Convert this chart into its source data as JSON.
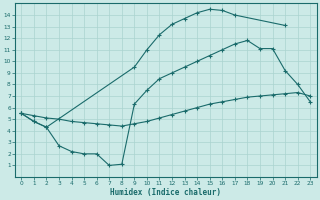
{
  "xlabel": "Humidex (Indice chaleur)",
  "bg_color": "#cceae7",
  "line_color": "#1a6b6b",
  "grid_color": "#aad4d0",
  "xlim": [
    -0.5,
    23.5
  ],
  "ylim": [
    0,
    15
  ],
  "xticks": [
    0,
    1,
    2,
    3,
    4,
    5,
    6,
    7,
    8,
    9,
    10,
    11,
    12,
    13,
    14,
    15,
    16,
    17,
    18,
    19,
    20,
    21,
    22,
    23
  ],
  "yticks": [
    1,
    2,
    3,
    4,
    5,
    6,
    7,
    8,
    9,
    10,
    11,
    12,
    13,
    14
  ],
  "curve1_x": [
    0,
    1,
    2,
    9,
    10,
    11,
    12,
    13,
    14,
    15,
    16,
    17,
    21
  ],
  "curve1_y": [
    5.5,
    4.8,
    4.3,
    9.5,
    11.0,
    12.3,
    13.2,
    13.7,
    14.2,
    14.5,
    14.4,
    14.0,
    13.1
  ],
  "curve2_x": [
    0,
    1,
    2,
    3,
    4,
    5,
    6,
    7,
    8,
    9,
    10,
    11,
    12,
    13,
    14,
    15,
    16,
    17,
    18,
    19,
    20,
    21,
    22,
    23
  ],
  "curve2_y": [
    5.5,
    5.3,
    5.1,
    5.0,
    4.8,
    4.7,
    4.6,
    4.5,
    4.4,
    4.6,
    4.8,
    5.1,
    5.4,
    5.7,
    6.0,
    6.3,
    6.5,
    6.7,
    6.9,
    7.0,
    7.1,
    7.2,
    7.3,
    7.0
  ],
  "curve3_x": [
    0,
    1,
    2,
    3,
    4,
    5,
    6,
    7,
    8,
    9,
    10,
    11,
    12,
    13,
    14,
    15,
    16,
    17,
    18,
    19,
    20,
    21,
    22,
    23
  ],
  "curve3_y": [
    5.5,
    4.8,
    4.3,
    2.7,
    2.2,
    2.0,
    2.0,
    1.0,
    1.1,
    6.3,
    7.5,
    8.5,
    9.0,
    9.5,
    10.0,
    10.5,
    11.0,
    11.5,
    11.8,
    11.1,
    11.1,
    9.2,
    8.0,
    6.5
  ]
}
